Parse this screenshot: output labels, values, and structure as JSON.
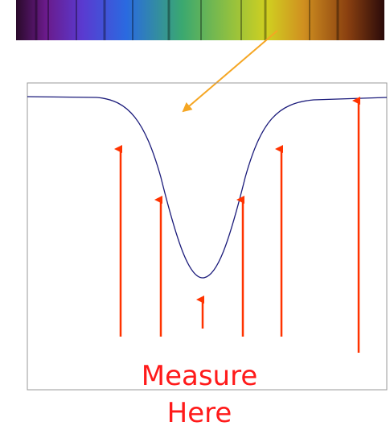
{
  "label": {
    "line1": "Measure",
    "line2": "Here"
  }
}
